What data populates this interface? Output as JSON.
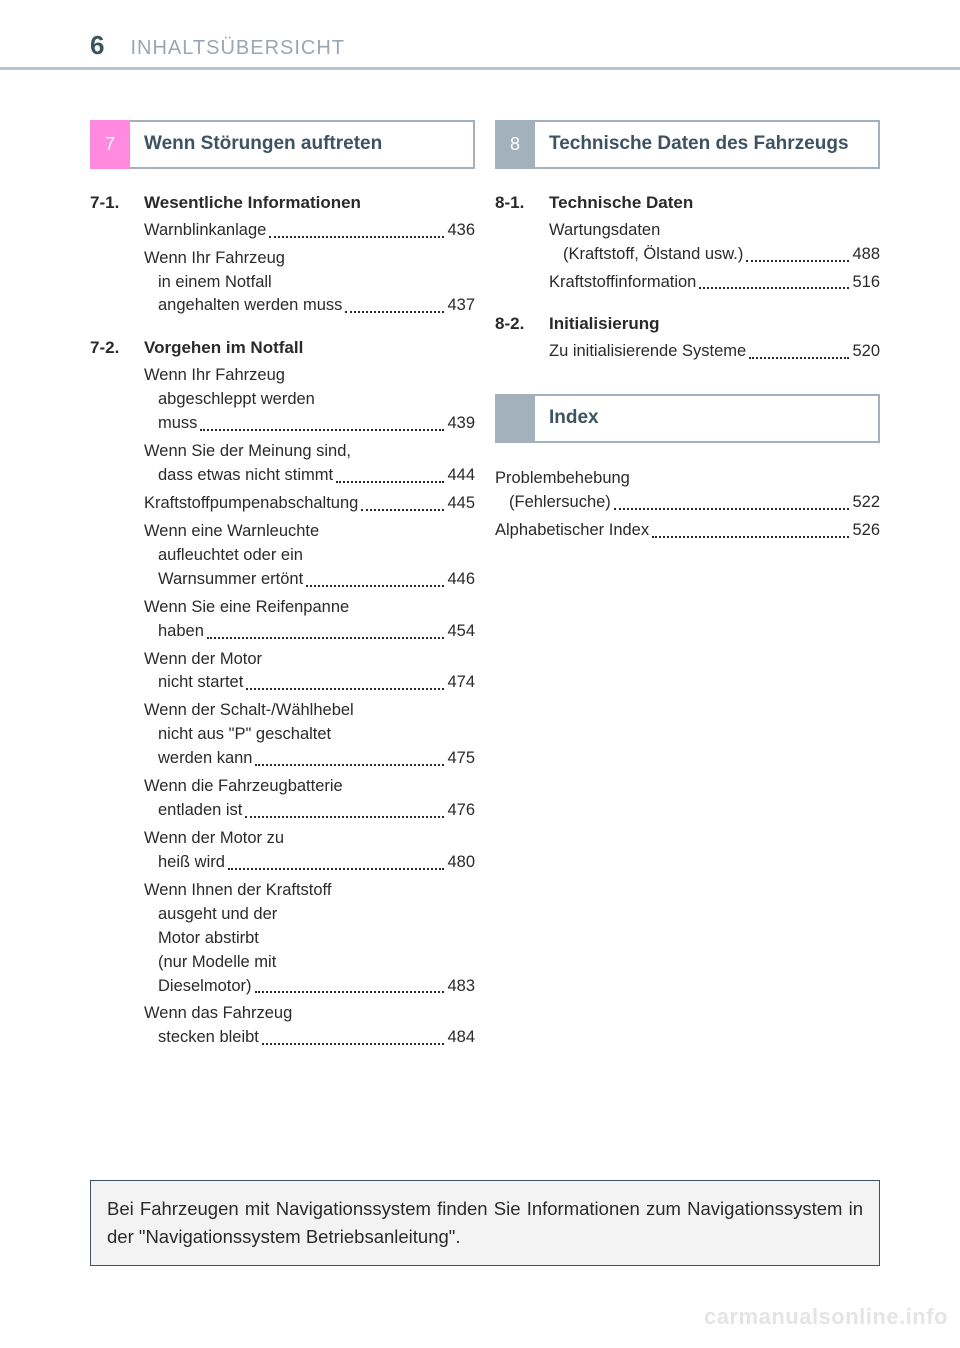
{
  "header": {
    "page_number": "6",
    "title": "INHALTSÜBERSICHT"
  },
  "left": {
    "section_number": "7",
    "section_title": "Wenn Störungen auftreten",
    "groups": [
      {
        "num": "7-1.",
        "title": "Wesentliche Informationen",
        "entries": [
          {
            "lines": [
              "Warnblinkanlage"
            ],
            "page": "436"
          },
          {
            "lines": [
              "Wenn Ihr Fahrzeug",
              "in einem Notfall",
              "angehalten werden muss"
            ],
            "page": "437"
          }
        ]
      },
      {
        "num": "7-2.",
        "title": "Vorgehen im Notfall",
        "entries": [
          {
            "lines": [
              "Wenn Ihr Fahrzeug",
              "abgeschleppt werden",
              "muss"
            ],
            "page": "439"
          },
          {
            "lines": [
              "Wenn Sie der Meinung sind,",
              "dass etwas nicht stimmt"
            ],
            "page": "444"
          },
          {
            "lines": [
              "Kraftstoffpumpenabschaltung"
            ],
            "page": "445"
          },
          {
            "lines": [
              "Wenn eine Warnleuchte",
              "aufleuchtet oder ein",
              "Warnsummer ertönt"
            ],
            "page": "446"
          },
          {
            "lines": [
              "Wenn Sie eine Reifenpanne",
              "haben"
            ],
            "page": "454"
          },
          {
            "lines": [
              "Wenn der Motor",
              "nicht startet"
            ],
            "page": "474"
          },
          {
            "lines": [
              "Wenn der Schalt-/Wählhebel",
              "nicht aus \"P\" geschaltet",
              "werden kann"
            ],
            "page": "475"
          },
          {
            "lines": [
              "Wenn die Fahrzeugbatterie",
              "entladen ist"
            ],
            "page": "476"
          },
          {
            "lines": [
              "Wenn der Motor zu",
              "heiß wird"
            ],
            "page": "480"
          },
          {
            "lines": [
              "Wenn Ihnen der Kraftstoff",
              "ausgeht und der",
              "Motor abstirbt",
              "(nur Modelle mit",
              "Dieselmotor)"
            ],
            "page": "483"
          },
          {
            "lines": [
              "Wenn das Fahrzeug",
              "stecken bleibt"
            ],
            "page": "484"
          }
        ]
      }
    ]
  },
  "right": {
    "section_number": "8",
    "section_title": "Technische Daten des Fahrzeugs",
    "groups": [
      {
        "num": "8-1.",
        "title": "Technische Daten",
        "entries": [
          {
            "lines": [
              "Wartungsdaten",
              "(Kraftstoff, Ölstand usw.)"
            ],
            "page": "488"
          },
          {
            "lines": [
              "Kraftstoffinformation"
            ],
            "page": "516"
          }
        ]
      },
      {
        "num": "8-2.",
        "title": "Initialisierung",
        "entries": [
          {
            "lines": [
              "Zu initialisierende Systeme"
            ],
            "page": "520"
          }
        ]
      }
    ],
    "index_title": "Index",
    "index_entries": [
      {
        "lines": [
          "Problembehebung",
          "(Fehlersuche)"
        ],
        "page": "522"
      },
      {
        "lines": [
          "Alphabetischer Index"
        ],
        "page": "526"
      }
    ]
  },
  "footer_note": "Bei Fahrzeugen mit Navigationssystem finden Sie Informationen zum Navigationssystem in der \"Navigationssystem Betriebsanleitung\".",
  "watermark": "carmanualsonline.info",
  "colors": {
    "pink": "#ff8adf",
    "gray": "#a3b1bd",
    "rule": "#b9c6d1",
    "text_muted": "#9aa7b2",
    "text_head": "#3d5361"
  }
}
